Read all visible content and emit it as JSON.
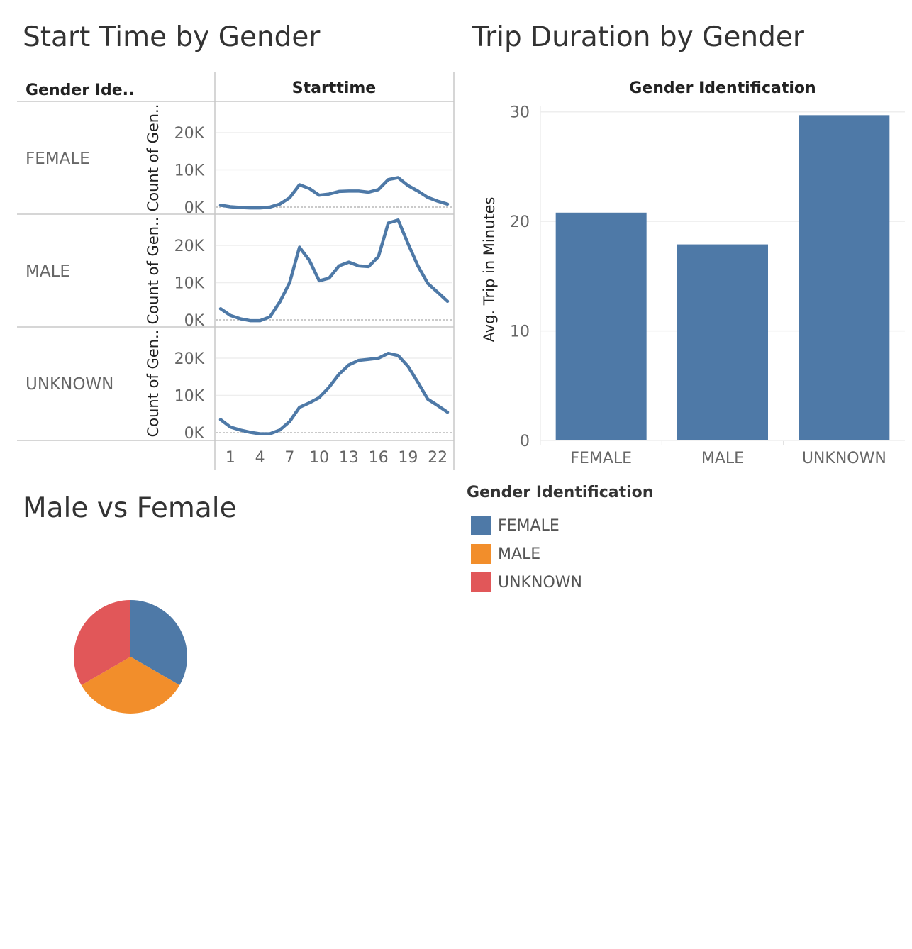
{
  "titles": {
    "start_time": "Start Time by Gender",
    "trip_duration": "Trip Duration by Gender",
    "pie": "Male vs Female"
  },
  "colors": {
    "female": "#4e79a7",
    "male": "#f28e2b",
    "unknown": "#e15759",
    "line": "#4e79a7",
    "bar": "#4e79a7"
  },
  "chart_data": [
    {
      "type": "line",
      "title": "Start Time by Gender",
      "row_header": "Gender Ide..",
      "column_header": "Starttime",
      "ylabel": "Count of Gen..",
      "yticks": [
        "0K",
        "10K",
        "20K"
      ],
      "xticks": [
        "1",
        "4",
        "7",
        "10",
        "13",
        "16",
        "19",
        "22"
      ],
      "ylim": [
        0,
        28000
      ],
      "x": [
        0,
        1,
        2,
        3,
        4,
        5,
        6,
        7,
        8,
        9,
        10,
        11,
        12,
        13,
        14,
        15,
        16,
        17,
        18,
        19,
        20,
        21,
        22,
        23
      ],
      "panels": [
        {
          "name": "FEMALE",
          "values": [
            500,
            100,
            -100,
            -200,
            -200,
            0,
            800,
            2500,
            6000,
            5000,
            3200,
            3500,
            4200,
            4300,
            4300,
            4000,
            4700,
            7400,
            7900,
            5800,
            4300,
            2600,
            1600,
            800
          ]
        },
        {
          "name": "MALE",
          "values": [
            3000,
            1200,
            300,
            -200,
            -200,
            800,
            4800,
            10000,
            19500,
            16000,
            10500,
            11200,
            14500,
            15500,
            14500,
            14300,
            17000,
            26000,
            26800,
            20500,
            14500,
            9800,
            7400,
            5000
          ]
        },
        {
          "name": "UNKNOWN",
          "values": [
            3500,
            1500,
            700,
            100,
            -300,
            -300,
            700,
            3000,
            6800,
            8000,
            9400,
            12200,
            15700,
            18200,
            19400,
            19700,
            20000,
            21300,
            20700,
            17800,
            13500,
            9000,
            7300,
            5500
          ]
        }
      ]
    },
    {
      "type": "bar",
      "title": "Trip Duration by Gender",
      "xlabel": "Gender Identification",
      "ylabel": "Avg. Trip in Minutes",
      "categories": [
        "FEMALE",
        "MALE",
        "UNKNOWN"
      ],
      "values": [
        20.8,
        17.9,
        29.7
      ],
      "yticks": [
        "0",
        "10",
        "20",
        "30"
      ],
      "ylim": [
        0,
        30.5
      ]
    },
    {
      "type": "pie",
      "title": "Male vs Female",
      "categories": [
        "FEMALE",
        "MALE",
        "UNKNOWN"
      ],
      "values": [
        33.3,
        33.3,
        33.3
      ]
    }
  ],
  "legend": {
    "title": "Gender Identification",
    "items": [
      {
        "label": "FEMALE",
        "color": "#4e79a7"
      },
      {
        "label": "MALE",
        "color": "#f28e2b"
      },
      {
        "label": "UNKNOWN",
        "color": "#e15759"
      }
    ]
  }
}
